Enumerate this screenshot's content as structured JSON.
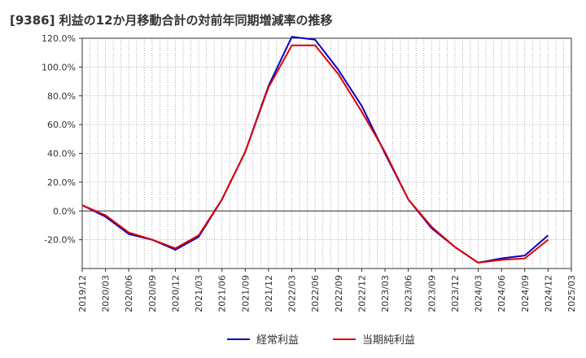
{
  "chart_data": {
    "type": "line",
    "title": "[9386]  利益の12か月移動合計の対前年同期増減率の推移",
    "xlabel": "",
    "ylabel": "",
    "ylim": [
      -40,
      120
    ],
    "yticks": [
      -20,
      0,
      20,
      40,
      60,
      80,
      100,
      120
    ],
    "ytick_labels": [
      "-20.0%",
      "0.0%",
      "20.0%",
      "40.0%",
      "60.0%",
      "80.0%",
      "100.0%",
      "120.0%"
    ],
    "xticks": [
      "2019/12",
      "2020/03",
      "2020/06",
      "2020/09",
      "2020/12",
      "2021/03",
      "2021/06",
      "2021/09",
      "2021/12",
      "2022/03",
      "2022/06",
      "2022/09",
      "2022/12",
      "2023/03",
      "2023/06",
      "2023/09",
      "2023/12",
      "2024/03",
      "2024/06",
      "2024/09",
      "2024/12",
      "2025/03"
    ],
    "grid": true,
    "legend_position": "bottom",
    "series": [
      {
        "name": "経常利益",
        "color": "#0000cc",
        "x": [
          "2019/12",
          "2020/03",
          "2020/06",
          "2020/09",
          "2020/12",
          "2021/03",
          "2021/06",
          "2021/09",
          "2021/12",
          "2022/03",
          "2022/06",
          "2022/09",
          "2022/12",
          "2023/03",
          "2023/06",
          "2023/09",
          "2023/12",
          "2024/03",
          "2024/06",
          "2024/09",
          "2024/12"
        ],
        "values": [
          4,
          -4,
          -16,
          -20,
          -27,
          -18,
          8,
          41,
          87,
          121,
          119,
          98,
          73,
          40,
          8,
          -12,
          -25,
          -36,
          -33,
          -31,
          -17
        ]
      },
      {
        "name": "当期純利益",
        "color": "#dd0000",
        "x": [
          "2019/12",
          "2020/03",
          "2020/06",
          "2020/09",
          "2020/12",
          "2021/03",
          "2021/06",
          "2021/09",
          "2021/12",
          "2022/03",
          "2022/06",
          "2022/09",
          "2022/12",
          "2023/03",
          "2023/06",
          "2023/09",
          "2023/12",
          "2024/03",
          "2024/06",
          "2024/09",
          "2024/12"
        ],
        "values": [
          4,
          -3,
          -15,
          -20,
          -26,
          -17,
          8,
          41,
          86,
          115,
          115,
          95,
          69,
          41,
          8,
          -11,
          -25,
          -36,
          -34,
          -33,
          -20
        ]
      }
    ]
  }
}
